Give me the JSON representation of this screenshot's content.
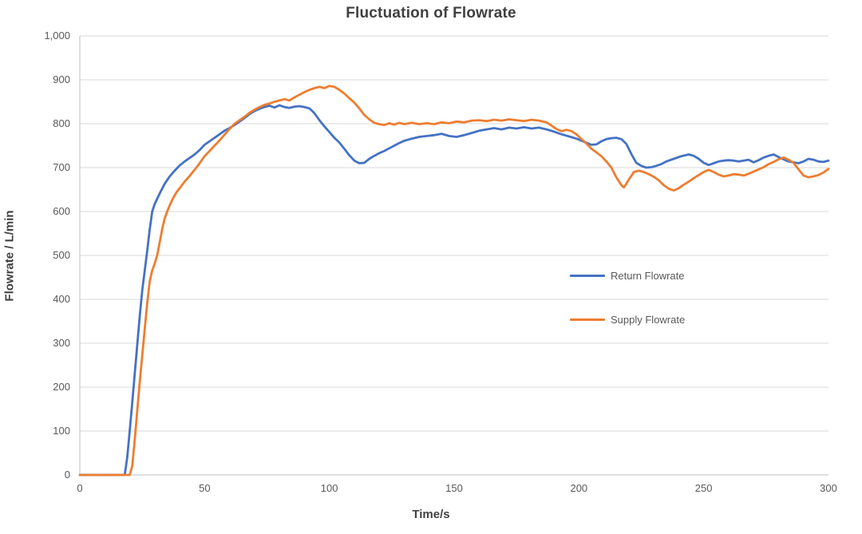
{
  "chart_data": {
    "type": "line",
    "title": "Fluctuation of Flowrate",
    "xlabel": "Time/s",
    "ylabel": "Flowrate / L/min",
    "xlim": [
      0,
      300
    ],
    "ylim": [
      0,
      1000
    ],
    "x_ticks": {
      "values": [
        0,
        50,
        100,
        150,
        200,
        250,
        300
      ],
      "labels": [
        "0",
        "50",
        "100",
        "150",
        "200",
        "250",
        "300"
      ]
    },
    "y_ticks": {
      "values": [
        0,
        100,
        200,
        300,
        400,
        500,
        600,
        700,
        800,
        900,
        1000
      ],
      "labels": [
        "0",
        "100",
        "200",
        "300",
        "400",
        "500",
        "600",
        "700",
        "800",
        "900",
        "1,000"
      ]
    },
    "grid": "horizontal",
    "legend_position": "inside-right-middle",
    "series": [
      {
        "name": "Return Flowrate",
        "color": "#4472C4",
        "points": [
          [
            0,
            0
          ],
          [
            5,
            0
          ],
          [
            10,
            0
          ],
          [
            15,
            0
          ],
          [
            18,
            0
          ],
          [
            19,
            40
          ],
          [
            20,
            100
          ],
          [
            21,
            165
          ],
          [
            22,
            230
          ],
          [
            23,
            295
          ],
          [
            24,
            360
          ],
          [
            25,
            420
          ],
          [
            26,
            465
          ],
          [
            27,
            510
          ],
          [
            28,
            558
          ],
          [
            29,
            600
          ],
          [
            30,
            617
          ],
          [
            32,
            641
          ],
          [
            34,
            663
          ],
          [
            36,
            680
          ],
          [
            38,
            693
          ],
          [
            40,
            705
          ],
          [
            42,
            714
          ],
          [
            44,
            722
          ],
          [
            46,
            730
          ],
          [
            48,
            740
          ],
          [
            50,
            752
          ],
          [
            52,
            760
          ],
          [
            54,
            768
          ],
          [
            56,
            776
          ],
          [
            58,
            784
          ],
          [
            60,
            790
          ],
          [
            62,
            797
          ],
          [
            64,
            805
          ],
          [
            66,
            813
          ],
          [
            68,
            822
          ],
          [
            70,
            829
          ],
          [
            72,
            834
          ],
          [
            74,
            838
          ],
          [
            76,
            841
          ],
          [
            78,
            837
          ],
          [
            80,
            842
          ],
          [
            82,
            838
          ],
          [
            84,
            836
          ],
          [
            86,
            839
          ],
          [
            88,
            840
          ],
          [
            90,
            838
          ],
          [
            92,
            835
          ],
          [
            94,
            824
          ],
          [
            96,
            808
          ],
          [
            98,
            794
          ],
          [
            100,
            781
          ],
          [
            102,
            768
          ],
          [
            104,
            757
          ],
          [
            106,
            743
          ],
          [
            108,
            728
          ],
          [
            110,
            716
          ],
          [
            112,
            710
          ],
          [
            114,
            711
          ],
          [
            116,
            720
          ],
          [
            118,
            727
          ],
          [
            120,
            733
          ],
          [
            122,
            738
          ],
          [
            124,
            744
          ],
          [
            126,
            750
          ],
          [
            128,
            756
          ],
          [
            130,
            761
          ],
          [
            133,
            766
          ],
          [
            136,
            770
          ],
          [
            139,
            772
          ],
          [
            142,
            774
          ],
          [
            145,
            777
          ],
          [
            148,
            772
          ],
          [
            151,
            770
          ],
          [
            154,
            774
          ],
          [
            157,
            779
          ],
          [
            160,
            784
          ],
          [
            163,
            787
          ],
          [
            166,
            790
          ],
          [
            169,
            787
          ],
          [
            172,
            791
          ],
          [
            175,
            789
          ],
          [
            178,
            792
          ],
          [
            181,
            789
          ],
          [
            184,
            791
          ],
          [
            187,
            787
          ],
          [
            190,
            782
          ],
          [
            193,
            776
          ],
          [
            196,
            771
          ],
          [
            199,
            766
          ],
          [
            202,
            759
          ],
          [
            205,
            752
          ],
          [
            207,
            753
          ],
          [
            209,
            760
          ],
          [
            211,
            765
          ],
          [
            213,
            767
          ],
          [
            215,
            768
          ],
          [
            217,
            765
          ],
          [
            219,
            754
          ],
          [
            221,
            731
          ],
          [
            223,
            711
          ],
          [
            225,
            704
          ],
          [
            227,
            700
          ],
          [
            229,
            701
          ],
          [
            231,
            704
          ],
          [
            233,
            708
          ],
          [
            235,
            714
          ],
          [
            238,
            720
          ],
          [
            241,
            726
          ],
          [
            244,
            730
          ],
          [
            246,
            727
          ],
          [
            248,
            720
          ],
          [
            250,
            711
          ],
          [
            252,
            706
          ],
          [
            254,
            710
          ],
          [
            256,
            714
          ],
          [
            258,
            716
          ],
          [
            260,
            717
          ],
          [
            262,
            716
          ],
          [
            264,
            714
          ],
          [
            266,
            716
          ],
          [
            268,
            718
          ],
          [
            270,
            712
          ],
          [
            272,
            717
          ],
          [
            274,
            723
          ],
          [
            276,
            727
          ],
          [
            278,
            730
          ],
          [
            280,
            724
          ],
          [
            282,
            719
          ],
          [
            284,
            714
          ],
          [
            286,
            712
          ],
          [
            288,
            710
          ],
          [
            290,
            714
          ],
          [
            292,
            720
          ],
          [
            294,
            718
          ],
          [
            296,
            714
          ],
          [
            298,
            713
          ],
          [
            300,
            716
          ]
        ]
      },
      {
        "name": "Supply Flowrate",
        "color": "#ED7D31",
        "points": [
          [
            0,
            0
          ],
          [
            5,
            0
          ],
          [
            10,
            0
          ],
          [
            15,
            0
          ],
          [
            20,
            0
          ],
          [
            21,
            20
          ],
          [
            22,
            80
          ],
          [
            23,
            145
          ],
          [
            24,
            210
          ],
          [
            25,
            272
          ],
          [
            26,
            332
          ],
          [
            27,
            390
          ],
          [
            28,
            440
          ],
          [
            29,
            466
          ],
          [
            30,
            481
          ],
          [
            31,
            500
          ],
          [
            32,
            530
          ],
          [
            33,
            560
          ],
          [
            34,
            584
          ],
          [
            35,
            600
          ],
          [
            36,
            614
          ],
          [
            37,
            626
          ],
          [
            38,
            637
          ],
          [
            39,
            646
          ],
          [
            40,
            653
          ],
          [
            42,
            668
          ],
          [
            44,
            681
          ],
          [
            46,
            695
          ],
          [
            48,
            710
          ],
          [
            50,
            726
          ],
          [
            52,
            738
          ],
          [
            54,
            750
          ],
          [
            56,
            762
          ],
          [
            58,
            775
          ],
          [
            60,
            788
          ],
          [
            62,
            800
          ],
          [
            64,
            808
          ],
          [
            66,
            816
          ],
          [
            68,
            825
          ],
          [
            70,
            832
          ],
          [
            72,
            838
          ],
          [
            74,
            843
          ],
          [
            76,
            846
          ],
          [
            78,
            850
          ],
          [
            80,
            853
          ],
          [
            82,
            856
          ],
          [
            84,
            853
          ],
          [
            86,
            860
          ],
          [
            88,
            866
          ],
          [
            90,
            872
          ],
          [
            92,
            877
          ],
          [
            94,
            881
          ],
          [
            96,
            884
          ],
          [
            98,
            881
          ],
          [
            100,
            886
          ],
          [
            102,
            884
          ],
          [
            104,
            877
          ],
          [
            106,
            869
          ],
          [
            108,
            858
          ],
          [
            110,
            848
          ],
          [
            112,
            835
          ],
          [
            114,
            820
          ],
          [
            116,
            810
          ],
          [
            118,
            802
          ],
          [
            120,
            799
          ],
          [
            122,
            797
          ],
          [
            124,
            801
          ],
          [
            126,
            798
          ],
          [
            128,
            802
          ],
          [
            130,
            799
          ],
          [
            133,
            802
          ],
          [
            136,
            799
          ],
          [
            139,
            801
          ],
          [
            142,
            799
          ],
          [
            145,
            803
          ],
          [
            148,
            801
          ],
          [
            151,
            805
          ],
          [
            154,
            803
          ],
          [
            157,
            807
          ],
          [
            160,
            808
          ],
          [
            163,
            806
          ],
          [
            166,
            809
          ],
          [
            169,
            807
          ],
          [
            172,
            810
          ],
          [
            175,
            808
          ],
          [
            178,
            806
          ],
          [
            181,
            809
          ],
          [
            184,
            807
          ],
          [
            187,
            803
          ],
          [
            189,
            796
          ],
          [
            191,
            788
          ],
          [
            193,
            783
          ],
          [
            195,
            786
          ],
          [
            197,
            783
          ],
          [
            199,
            776
          ],
          [
            201,
            765
          ],
          [
            203,
            755
          ],
          [
            205,
            743
          ],
          [
            207,
            735
          ],
          [
            209,
            726
          ],
          [
            211,
            714
          ],
          [
            213,
            700
          ],
          [
            215,
            678
          ],
          [
            217,
            660
          ],
          [
            218,
            655
          ],
          [
            219,
            663
          ],
          [
            220,
            673
          ],
          [
            221,
            681
          ],
          [
            222,
            690
          ],
          [
            224,
            693
          ],
          [
            226,
            690
          ],
          [
            228,
            685
          ],
          [
            230,
            679
          ],
          [
            232,
            671
          ],
          [
            234,
            660
          ],
          [
            236,
            652
          ],
          [
            238,
            648
          ],
          [
            240,
            653
          ],
          [
            242,
            661
          ],
          [
            244,
            668
          ],
          [
            246,
            676
          ],
          [
            248,
            683
          ],
          [
            250,
            690
          ],
          [
            252,
            695
          ],
          [
            254,
            690
          ],
          [
            256,
            684
          ],
          [
            258,
            680
          ],
          [
            260,
            682
          ],
          [
            262,
            685
          ],
          [
            264,
            684
          ],
          [
            266,
            682
          ],
          [
            268,
            686
          ],
          [
            270,
            691
          ],
          [
            272,
            696
          ],
          [
            274,
            701
          ],
          [
            276,
            708
          ],
          [
            278,
            713
          ],
          [
            280,
            719
          ],
          [
            282,
            723
          ],
          [
            284,
            718
          ],
          [
            286,
            711
          ],
          [
            288,
            696
          ],
          [
            290,
            682
          ],
          [
            292,
            678
          ],
          [
            294,
            680
          ],
          [
            296,
            683
          ],
          [
            298,
            689
          ],
          [
            300,
            697
          ]
        ]
      }
    ]
  },
  "colors": {
    "return_series": "#4472C4",
    "supply_series": "#ED7D31",
    "gridline": "#D9D9D9",
    "axis_line": "#BFBFBF",
    "tick_text": "#595959",
    "title_text": "#404040"
  }
}
